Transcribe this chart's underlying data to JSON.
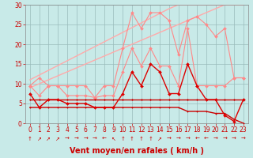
{
  "x": [
    0,
    1,
    2,
    3,
    4,
    5,
    6,
    7,
    8,
    9,
    10,
    11,
    12,
    13,
    14,
    15,
    16,
    17,
    18,
    19,
    20,
    21,
    22,
    23
  ],
  "series": [
    {
      "name": "rafales_high",
      "color": "#ff8888",
      "lw": 0.8,
      "marker": "D",
      "ms": 2.0,
      "zorder": 3,
      "y": [
        9.5,
        11.5,
        9.5,
        9.5,
        9.5,
        9.5,
        9.5,
        6.5,
        9.5,
        9.5,
        19,
        28,
        24,
        28,
        28,
        26,
        17.5,
        26,
        27,
        25,
        22,
        24,
        11.5,
        11.5
      ]
    },
    {
      "name": "rafales_mid",
      "color": "#ff8888",
      "lw": 0.8,
      "marker": "D",
      "ms": 2.0,
      "zorder": 3,
      "y": [
        9.5,
        7.0,
        9.5,
        9.5,
        7.0,
        7.0,
        7.0,
        6.5,
        7.0,
        7.0,
        13,
        19,
        14.5,
        19,
        14.5,
        14.5,
        9.5,
        24,
        9.5,
        9.5,
        9.5,
        9.5,
        11.5,
        11.5
      ]
    },
    {
      "name": "trend_high",
      "color": "#ffaaaa",
      "lw": 1.0,
      "marker": "none",
      "ms": 0,
      "zorder": 2,
      "y": [
        11.0,
        12.2,
        13.4,
        14.6,
        15.8,
        17.0,
        18.2,
        19.4,
        20.6,
        21.8,
        23.0,
        24.2,
        25.4,
        26.6,
        27.8,
        29.0,
        30.0,
        30.0,
        30.0,
        30.0,
        30.0,
        30.0,
        30.0,
        30.0
      ]
    },
    {
      "name": "trend_low",
      "color": "#ffaaaa",
      "lw": 1.0,
      "marker": "none",
      "ms": 0,
      "zorder": 2,
      "y": [
        9.0,
        10.0,
        11.0,
        12.0,
        13.0,
        14.0,
        15.0,
        16.0,
        17.0,
        18.0,
        19.0,
        20.0,
        21.0,
        22.0,
        23.0,
        24.0,
        25.0,
        26.0,
        27.0,
        28.0,
        29.0,
        30.0,
        30.0,
        30.0
      ]
    },
    {
      "name": "moyen_main",
      "color": "#dd0000",
      "lw": 1.0,
      "marker": "D",
      "ms": 2.0,
      "zorder": 4,
      "y": [
        7.5,
        4.0,
        6.0,
        6.0,
        5.0,
        5.0,
        5.0,
        4.0,
        4.0,
        4.0,
        7.5,
        13.0,
        9.5,
        15.0,
        13.0,
        7.5,
        7.5,
        15.0,
        9.5,
        6.0,
        6.0,
        2.0,
        0.5,
        6.0
      ]
    },
    {
      "name": "flat_high",
      "color": "#cc0000",
      "lw": 1.0,
      "marker": ".",
      "ms": 2.5,
      "zorder": 3,
      "y": [
        6.0,
        6.0,
        6.0,
        6.0,
        6.0,
        6.0,
        6.0,
        6.0,
        6.0,
        6.0,
        6.0,
        6.0,
        6.0,
        6.0,
        6.0,
        6.0,
        6.0,
        6.0,
        6.0,
        6.0,
        6.0,
        6.0,
        6.0,
        6.0
      ]
    },
    {
      "name": "flat_low",
      "color": "#cc0000",
      "lw": 1.0,
      "marker": ".",
      "ms": 2.0,
      "zorder": 3,
      "y": [
        4.0,
        4.0,
        4.0,
        4.0,
        4.0,
        4.0,
        4.0,
        4.0,
        4.0,
        4.0,
        4.0,
        4.0,
        4.0,
        4.0,
        4.0,
        4.0,
        4.0,
        3.0,
        3.0,
        3.0,
        2.5,
        2.5,
        1.0,
        0.0
      ]
    }
  ],
  "arrows": [
    "↑",
    "↗",
    "↗",
    "↗",
    "→",
    "→",
    "→",
    "→",
    "←",
    "↖",
    "↑",
    "↑",
    "↑",
    "↑",
    "↗",
    "→",
    "→",
    "→",
    "←",
    "←",
    "→",
    "→",
    "→",
    "→"
  ],
  "xlim": [
    -0.5,
    23.5
  ],
  "ylim": [
    0,
    30
  ],
  "yticks": [
    0,
    5,
    10,
    15,
    20,
    25,
    30
  ],
  "xticks": [
    0,
    1,
    2,
    3,
    4,
    5,
    6,
    7,
    8,
    9,
    10,
    11,
    12,
    13,
    14,
    15,
    16,
    17,
    18,
    19,
    20,
    21,
    22,
    23
  ],
  "xlabel": "Vent moyen/en rafales ( km/h )",
  "bg_color": "#c8eae8",
  "grid_color": "#99bbbb",
  "label_fontsize": 7,
  "tick_fontsize": 5.5,
  "arrow_fontsize": 5.0
}
